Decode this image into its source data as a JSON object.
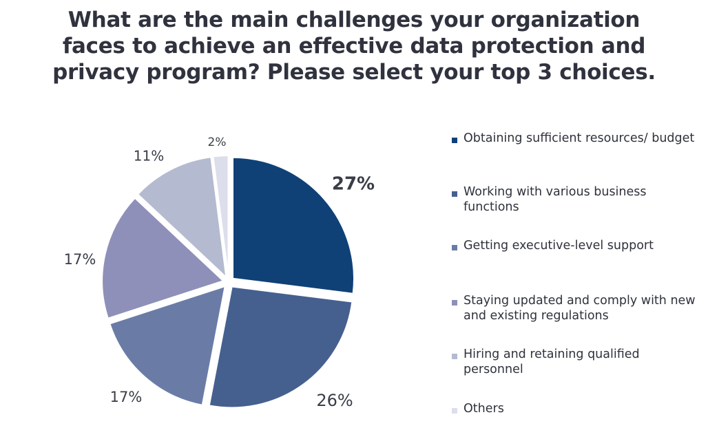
{
  "title": "What are the main challenges your organization faces to achieve an effective data protection and privacy program? Please select your top 3 choices.",
  "chart_data": {
    "type": "pie",
    "title": "What are the main challenges your organization faces to achieve an effective data protection and privacy program? Please select your top 3 choices.",
    "categories": [
      "Obtaining sufficient resources/ budget",
      "Working with various business functions",
      "Getting executive-level support",
      "Staying updated and comply with new and existing regulations",
      "Hiring and retaining qualified personnel",
      "Others"
    ],
    "values": [
      27,
      26,
      17,
      17,
      11,
      2
    ],
    "value_labels": [
      "27%",
      "26%",
      "17%",
      "17%",
      "11%",
      "2%"
    ],
    "colors": [
      "#0f4177",
      "#45608f",
      "#6a7ca6",
      "#8f90b9",
      "#b4bbd0",
      "#dcdeeb"
    ],
    "legend_position": "right",
    "highlighted_label": "27%"
  }
}
